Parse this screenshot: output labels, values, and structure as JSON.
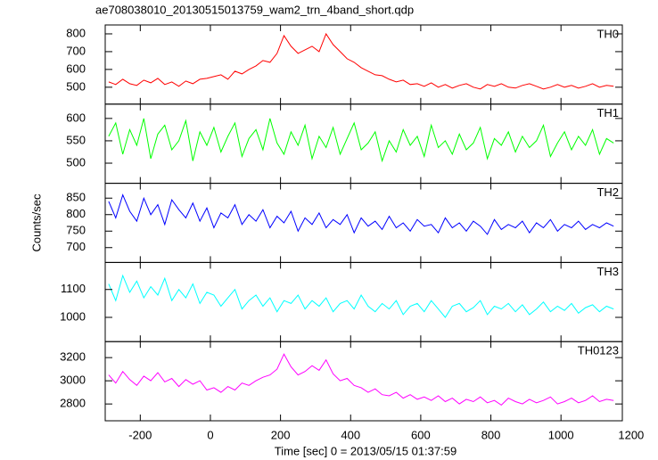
{
  "chart_data": {
    "type": "line",
    "title": "ae708038010_20130515013759_wam2_trn_4band_short.qdp",
    "xlabel": "Time [sec] 0 = 2013/05/15 01:37:59",
    "ylabel": "Counts/sec",
    "xlim": [
      -300,
      1175
    ],
    "xticks": [
      -200,
      0,
      200,
      400,
      600,
      800,
      1000,
      1200
    ],
    "x": [
      -290,
      -270,
      -250,
      -230,
      -210,
      -190,
      -170,
      -150,
      -130,
      -110,
      -90,
      -70,
      -50,
      -30,
      -10,
      10,
      30,
      50,
      70,
      90,
      110,
      130,
      150,
      170,
      190,
      210,
      230,
      250,
      270,
      290,
      310,
      330,
      350,
      370,
      390,
      410,
      430,
      450,
      470,
      490,
      510,
      530,
      550,
      570,
      590,
      610,
      630,
      650,
      670,
      690,
      710,
      730,
      750,
      770,
      790,
      810,
      830,
      850,
      870,
      890,
      910,
      930,
      950,
      970,
      990,
      1010,
      1030,
      1050,
      1070,
      1090,
      1110,
      1130,
      1150
    ],
    "series": [
      {
        "name": "TH0",
        "color": "#ff0000",
        "ylim": [
          405,
          850
        ],
        "yticks": [
          500,
          600,
          700,
          800
        ],
        "values": [
          530,
          515,
          545,
          520,
          510,
          540,
          525,
          550,
          515,
          530,
          505,
          535,
          520,
          545,
          550,
          560,
          570,
          545,
          590,
          575,
          600,
          620,
          650,
          640,
          690,
          790,
          730,
          690,
          710,
          730,
          700,
          800,
          740,
          700,
          660,
          640,
          610,
          590,
          570,
          565,
          545,
          530,
          540,
          515,
          520,
          505,
          525,
          500,
          515,
          495,
          510,
          520,
          500,
          490,
          515,
          505,
          520,
          500,
          495,
          510,
          520,
          505,
          490,
          500,
          515,
          500,
          510,
          495,
          505,
          520,
          500,
          510,
          505
        ]
      },
      {
        "name": "TH1",
        "color": "#00ff00",
        "ylim": [
          455,
          632
        ],
        "yticks": [
          500,
          550,
          600
        ],
        "values": [
          560,
          590,
          520,
          575,
          540,
          600,
          510,
          565,
          585,
          530,
          550,
          595,
          505,
          570,
          540,
          580,
          525,
          560,
          590,
          515,
          555,
          575,
          530,
          600,
          545,
          520,
          570,
          540,
          585,
          510,
          560,
          535,
          580,
          520,
          555,
          590,
          530,
          545,
          570,
          505,
          550,
          525,
          575,
          540,
          560,
          515,
          585,
          535,
          550,
          520,
          565,
          530,
          545,
          580,
          510,
          555,
          540,
          570,
          525,
          560,
          535,
          550,
          585,
          515,
          545,
          570,
          530,
          560,
          540,
          575,
          520,
          555,
          545
        ]
      },
      {
        "name": "TH2",
        "color": "#0000ff",
        "ylim": [
          655,
          895
        ],
        "yticks": [
          700,
          750,
          800,
          850
        ],
        "values": [
          840,
          790,
          860,
          810,
          780,
          850,
          800,
          830,
          770,
          845,
          815,
          790,
          835,
          780,
          820,
          760,
          805,
          790,
          830,
          770,
          800,
          780,
          815,
          760,
          795,
          775,
          810,
          750,
          790,
          770,
          805,
          760,
          785,
          770,
          800,
          745,
          790,
          765,
          780,
          755,
          795,
          760,
          775,
          750,
          785,
          765,
          770,
          745,
          790,
          760,
          775,
          750,
          780,
          765,
          740,
          785,
          755,
          770,
          760,
          780,
          745,
          775,
          760,
          785,
          750,
          770,
          760,
          780,
          755,
          770,
          760,
          775,
          765
        ]
      },
      {
        "name": "TH3",
        "color": "#00ffff",
        "ylim": [
          913,
          1197
        ],
        "yticks": [
          1000,
          1100
        ],
        "values": [
          1120,
          1060,
          1150,
          1090,
          1130,
          1070,
          1110,
          1080,
          1140,
          1060,
          1100,
          1070,
          1120,
          1050,
          1090,
          1080,
          1040,
          1070,
          1100,
          1030,
          1060,
          1080,
          1040,
          1070,
          1020,
          1060,
          1050,
          1080,
          1030,
          1060,
          1040,
          1070,
          1020,
          1050,
          1060,
          1030,
          1080,
          1040,
          1020,
          1050,
          1030,
          1060,
          1010,
          1040,
          1050,
          1020,
          1060,
          1030,
          1000,
          1040,
          1050,
          1020,
          1035,
          1060,
          1010,
          1040,
          1030,
          1050,
          1020,
          1045,
          1010,
          1030,
          1055,
          1020,
          1040,
          1025,
          1050,
          1015,
          1035,
          1045,
          1020,
          1040,
          1030
        ]
      },
      {
        "name": "TH0123",
        "color": "#ff00ff",
        "ylim": [
          2655,
          3338
        ],
        "yticks": [
          2800,
          3000,
          3200
        ],
        "values": [
          3050,
          2980,
          3080,
          3010,
          2960,
          3040,
          3000,
          3070,
          2990,
          3020,
          2950,
          3010,
          2970,
          3000,
          2920,
          2940,
          2900,
          2950,
          2920,
          2980,
          2960,
          3000,
          3030,
          3050,
          3100,
          3230,
          3120,
          3050,
          3080,
          3130,
          3090,
          3180,
          3060,
          3000,
          3020,
          2960,
          2940,
          2900,
          2930,
          2880,
          2870,
          2900,
          2850,
          2880,
          2840,
          2860,
          2830,
          2870,
          2820,
          2850,
          2800,
          2840,
          2820,
          2860,
          2810,
          2830,
          2790,
          2850,
          2820,
          2800,
          2840,
          2810,
          2830,
          2860,
          2800,
          2820,
          2850,
          2810,
          2830,
          2870,
          2820,
          2840,
          2830
        ]
      }
    ]
  }
}
